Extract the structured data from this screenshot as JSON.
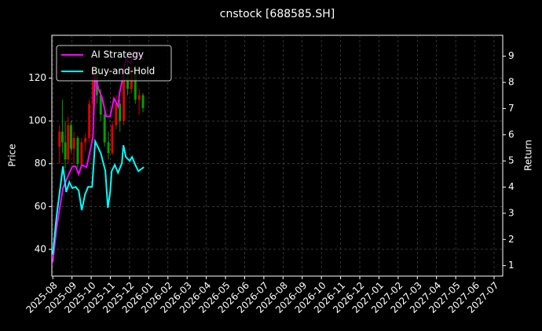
{
  "chart_data": {
    "type": "line",
    "title": "cnstock [688585.SH]",
    "ylabel": "Price",
    "y2label": "Return",
    "xlim": [
      -0.05,
      23.45
    ],
    "xticks": [
      {
        "value": 0,
        "label": "2025-08"
      },
      {
        "value": 1,
        "label": "2025-09"
      },
      {
        "value": 2,
        "label": "2025-10"
      },
      {
        "value": 3,
        "label": "2025-11"
      },
      {
        "value": 4,
        "label": "2025-12"
      },
      {
        "value": 5,
        "label": "2026-01"
      },
      {
        "value": 6,
        "label": "2026-02"
      },
      {
        "value": 7,
        "label": "2026-03"
      },
      {
        "value": 8,
        "label": "2026-04"
      },
      {
        "value": 9,
        "label": "2026-05"
      },
      {
        "value": 10,
        "label": "2026-06"
      },
      {
        "value": 11,
        "label": "2026-07"
      },
      {
        "value": 12,
        "label": "2026-08"
      },
      {
        "value": 13,
        "label": "2026-09"
      },
      {
        "value": 14,
        "label": "2026-10"
      },
      {
        "value": 15,
        "label": "2026-11"
      },
      {
        "value": 16,
        "label": "2026-12"
      },
      {
        "value": 17,
        "label": "2027-01"
      },
      {
        "value": 18,
        "label": "2027-02"
      },
      {
        "value": 19,
        "label": "2027-03"
      },
      {
        "value": 20,
        "label": "2027-04"
      },
      {
        "value": 21,
        "label": "2027-05"
      },
      {
        "value": 22,
        "label": "2027-06"
      },
      {
        "value": 23,
        "label": "2027-07"
      }
    ],
    "ylim": [
      27.5,
      140
    ],
    "yticks": [
      40,
      60,
      80,
      100,
      120
    ],
    "y2lim": [
      0.6,
      9.8
    ],
    "y2ticks": [
      1,
      2,
      3,
      4,
      5,
      6,
      7,
      8,
      9
    ],
    "grid": true,
    "legend": "upper left",
    "candles": {
      "up_color": "#e00000",
      "down_color": "#00a000",
      "x": [
        0.35,
        0.5,
        0.65,
        0.8,
        0.95,
        1.1,
        1.3,
        1.5,
        1.7,
        1.9,
        2.1,
        2.3,
        2.5,
        2.7,
        2.9,
        3.1,
        3.3,
        3.5,
        3.7,
        3.9,
        4.1,
        4.3,
        4.5,
        4.7
      ],
      "open": [
        88,
        95,
        90,
        82,
        98,
        87,
        92,
        80,
        90,
        92,
        108,
        125,
        112,
        103,
        90,
        85,
        98,
        108,
        100,
        120,
        115,
        125,
        110,
        112
      ],
      "high": [
        98,
        110,
        100,
        102,
        100,
        95,
        93,
        92,
        94,
        110,
        130,
        128,
        115,
        105,
        95,
        100,
        112,
        110,
        125,
        130,
        128,
        126,
        115,
        113
      ],
      "low": [
        80,
        85,
        78,
        80,
        85,
        80,
        78,
        79,
        86,
        90,
        100,
        108,
        100,
        88,
        82,
        84,
        96,
        95,
        98,
        112,
        113,
        108,
        103,
        104
      ],
      "close": [
        95,
        90,
        82,
        98,
        87,
        92,
        80,
        90,
        92,
        108,
        125,
        112,
        103,
        90,
        85,
        98,
        108,
        100,
        120,
        115,
        125,
        110,
        112,
        106
      ]
    },
    "series": [
      {
        "name": "AI Strategy",
        "color": "#ff00ff",
        "axis": "y2",
        "x": [
          0,
          0.2,
          0.53,
          0.78,
          1.02,
          1.19,
          1.35,
          1.51,
          1.76,
          1.92,
          2.09,
          2.21,
          2.37,
          2.58,
          2.78,
          2.99,
          3.19,
          3.4,
          3.48,
          3.64,
          3.81,
          4.05,
          4.22,
          4.46,
          4.75
        ],
        "values": [
          1.12,
          2.46,
          3.96,
          4.4,
          4.79,
          4.79,
          4.49,
          4.85,
          4.76,
          5.3,
          5.9,
          8.28,
          7.78,
          7.39,
          6.7,
          6.7,
          7.39,
          7.09,
          7.6,
          8.13,
          8.88,
          8.73,
          9.18,
          9.03,
          8.88
        ]
      },
      {
        "name": "Buy-and-Hold",
        "color": "#00ffff",
        "axis": "y2",
        "x": [
          0,
          0.2,
          0.53,
          0.7,
          0.86,
          1.02,
          1.19,
          1.35,
          1.51,
          1.68,
          1.84,
          2.05,
          2.21,
          2.5,
          2.74,
          2.87,
          2.99,
          3.07,
          3.23,
          3.4,
          3.6,
          3.68,
          3.81,
          4.01,
          4.13,
          4.3,
          4.46,
          4.63,
          4.75
        ],
        "values": [
          1.42,
          2.91,
          4.79,
          3.81,
          4.19,
          3.96,
          4.01,
          3.87,
          3.12,
          3.72,
          4.01,
          4.01,
          5.75,
          5.3,
          4.61,
          3.21,
          3.81,
          4.61,
          4.85,
          4.55,
          4.91,
          5.6,
          5.15,
          5.0,
          5.15,
          4.85,
          4.61,
          4.7,
          4.76
        ]
      }
    ]
  }
}
